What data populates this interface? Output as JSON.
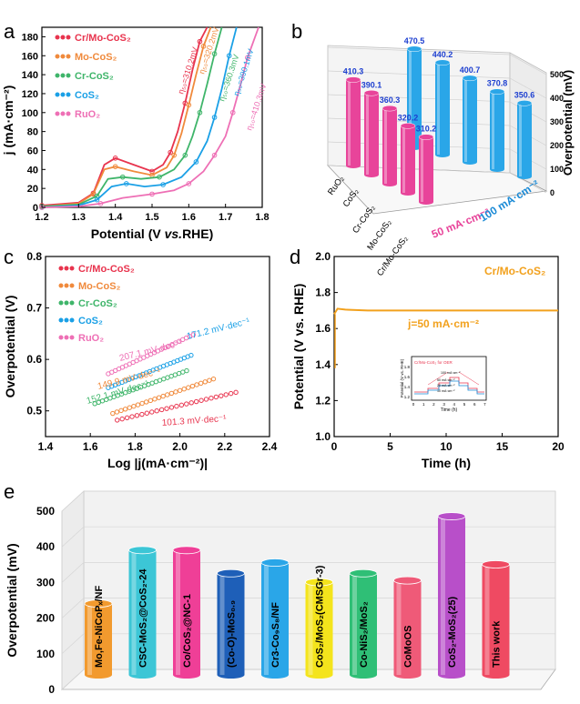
{
  "panel_labels": [
    "a",
    "b",
    "c",
    "d",
    "e"
  ],
  "colors": {
    "cr_mo": "#e8344e",
    "mo": "#f08a3c",
    "cr": "#3fb56a",
    "cos2": "#1aa0e6",
    "ruo2": "#ee6fb5",
    "accent_orange": "#f2a11d",
    "bar_blue": "#2aa6e8",
    "bar_pink": "#e8449a"
  },
  "chart_data": [
    {
      "id": "a",
      "type": "line",
      "xlabel_parts": [
        "Potential (V ",
        "vs.",
        "RHE)"
      ],
      "ylabel": "j (mA·cm⁻²)",
      "xlim": [
        1.2,
        1.8
      ],
      "ylim": [
        0,
        190
      ],
      "xticks": [
        "1.2",
        "1.3",
        "1.4",
        "1.5",
        "1.6",
        "1.7",
        "1.8"
      ],
      "yticks": [
        "0",
        "20",
        "40",
        "60",
        "80",
        "100",
        "120",
        "140",
        "160",
        "180"
      ],
      "legend": [
        "Cr/Mo-CoS₂",
        "Mo-CoS₂",
        "Cr-CoS₂",
        "CoS₂",
        "RuO₂"
      ],
      "annotations": [
        "η₅₀=310.2mV",
        "η₅₀=320.2mV",
        "η₅₀=360.3mV",
        "η₅₀=390.1mV",
        "η₅₀=410.3mV"
      ],
      "series": [
        {
          "name": "Cr/Mo-CoS₂",
          "x": [
            1.2,
            1.3,
            1.34,
            1.37,
            1.4,
            1.45,
            1.5,
            1.53,
            1.55,
            1.57,
            1.59,
            1.61,
            1.63,
            1.65
          ],
          "y": [
            2,
            5,
            15,
            45,
            52,
            45,
            38,
            45,
            58,
            80,
            110,
            145,
            175,
            190
          ]
        },
        {
          "name": "Mo-CoS₂",
          "x": [
            1.2,
            1.3,
            1.34,
            1.37,
            1.4,
            1.45,
            1.5,
            1.54,
            1.56,
            1.58,
            1.6,
            1.62,
            1.64,
            1.66
          ],
          "y": [
            1,
            4,
            14,
            40,
            43,
            38,
            34,
            42,
            55,
            78,
            108,
            140,
            170,
            190
          ]
        },
        {
          "name": "Cr-CoS₂",
          "x": [
            1.2,
            1.3,
            1.35,
            1.38,
            1.42,
            1.47,
            1.52,
            1.56,
            1.59,
            1.61,
            1.63,
            1.65,
            1.67,
            1.69
          ],
          "y": [
            1,
            3,
            12,
            30,
            32,
            30,
            32,
            40,
            55,
            75,
            100,
            130,
            162,
            190
          ]
        },
        {
          "name": "CoS₂",
          "x": [
            1.2,
            1.3,
            1.35,
            1.39,
            1.43,
            1.48,
            1.53,
            1.58,
            1.62,
            1.65,
            1.67,
            1.69,
            1.71,
            1.73
          ],
          "y": [
            0,
            2,
            8,
            22,
            25,
            22,
            24,
            32,
            48,
            70,
            95,
            125,
            160,
            190
          ]
        },
        {
          "name": "RuO₂",
          "x": [
            1.2,
            1.3,
            1.36,
            1.42,
            1.5,
            1.56,
            1.6,
            1.64,
            1.67,
            1.7,
            1.72,
            1.74,
            1.76,
            1.79
          ],
          "y": [
            0,
            1,
            4,
            10,
            14,
            18,
            25,
            38,
            55,
            75,
            100,
            128,
            158,
            190
          ]
        }
      ]
    },
    {
      "id": "b",
      "type": "bar",
      "zlabel": "Overpotential (mV)",
      "zlim": [
        0,
        500
      ],
      "zticks": [
        "0",
        "100",
        "200",
        "300",
        "400",
        "500"
      ],
      "categories": [
        "RuO₂",
        "CoS₂",
        "Cr-CoS₂",
        "Mo-CoS₂",
        "Cr/Mo-CoS₂"
      ],
      "series": [
        {
          "name": "50 mA·cm⁻²",
          "values": [
            410.3,
            390.1,
            360.3,
            320.2,
            310.2
          ]
        },
        {
          "name": "100 mA·cm⁻²",
          "values": [
            470.5,
            440.2,
            400.7,
            370.8,
            350.6
          ]
        }
      ],
      "value_labels_50": [
        "410.3",
        "390.1",
        "360.3",
        "320.2",
        "310.2"
      ],
      "value_labels_100": [
        "470.5",
        "440.2",
        "400.7",
        "370.8",
        "350.6"
      ]
    },
    {
      "id": "c",
      "type": "scatter",
      "xlabel": "Log |j(mA·cm⁻²)|",
      "ylabel": "Overpotential (V)",
      "xlim": [
        1.4,
        2.4
      ],
      "ylim": [
        0.45,
        0.8
      ],
      "xticks": [
        "1.4",
        "1.6",
        "1.8",
        "2.0",
        "2.2",
        "2.4"
      ],
      "yticks": [
        "0.5",
        "0.6",
        "0.7",
        "0.8"
      ],
      "legend": [
        "Cr/Mo-CoS₂",
        "Mo-CoS₂",
        "Cr-CoS₂",
        "CoS₂",
        "RuO₂"
      ],
      "slope_labels": [
        "207.1 mV·dec⁻¹",
        "171.2 mV·dec⁻¹",
        "152.1 mV·dec⁻¹",
        "149.9 mV·dec⁻¹",
        "101.3 mV·dec⁻¹"
      ],
      "series": [
        {
          "name": "Cr/Mo-CoS₂",
          "x": [
            1.72,
            2.25
          ],
          "y": [
            0.482,
            0.536
          ]
        },
        {
          "name": "Mo-CoS₂",
          "x": [
            1.7,
            2.15
          ],
          "y": [
            0.495,
            0.562
          ]
        },
        {
          "name": "Cr-CoS₂",
          "x": [
            1.62,
            2.03
          ],
          "y": [
            0.514,
            0.578
          ]
        },
        {
          "name": "CoS₂",
          "x": [
            1.68,
            2.05
          ],
          "y": [
            0.545,
            0.608
          ]
        },
        {
          "name": "RuO₂",
          "x": [
            1.68,
            2.06
          ],
          "y": [
            0.572,
            0.648
          ]
        }
      ]
    },
    {
      "id": "d",
      "type": "line",
      "xlabel": "Time (h)",
      "ylabel": "Potential (V vs. RHE)",
      "xlim": [
        0,
        20
      ],
      "ylim": [
        1.0,
        2.0
      ],
      "xticks": [
        "0",
        "5",
        "10",
        "15",
        "20"
      ],
      "yticks": [
        "1.0",
        "1.2",
        "1.4",
        "1.6",
        "1.8",
        "2.0"
      ],
      "legend_label": "Cr/Mo-CoS₂",
      "annotation": "j=50 mA·cm⁻²",
      "series": [
        {
          "name": "Cr/Mo-CoS₂",
          "x": [
            0,
            0.3,
            1,
            3,
            6,
            10,
            15,
            20
          ],
          "y": [
            1.68,
            1.71,
            1.705,
            1.7,
            1.7,
            1.7,
            1.7,
            1.7
          ]
        }
      ],
      "inset": {
        "title": "Cr/Mo-CoS₂ for OER",
        "xlabel": "Time (h)",
        "ylabel": "Potential (V vs. RHE)",
        "xticks": [
          "0",
          "1",
          "2",
          "3",
          "4",
          "5",
          "6",
          "7"
        ],
        "yticks": [
          "1.2",
          "1.4",
          "1.6",
          "1.8"
        ],
        "step_labels": [
          "100 mA·cm⁻²",
          "50 mA·cm⁻²",
          "20 mA·cm⁻²",
          "10 mA·cm⁻²"
        ]
      }
    },
    {
      "id": "e",
      "type": "bar",
      "ylabel": "Overpotential  (mV)",
      "ylim": [
        0,
        500
      ],
      "yticks": [
        "0",
        "100",
        "200",
        "300",
        "400",
        "500"
      ],
      "categories": [
        "Mo,Fe-NiCoPₓ/NF",
        "CSC-MoS₂@CoS₂-24",
        "Co/CoS₂@NC-1",
        "(Co-O)-MoS₀.₉",
        "Cr3-Co₉S₈/NF",
        "CoS₂/MoS₂(CMSGr-3)",
        "Co-NiS₂/MoS₂",
        "CoMoOS",
        "CoS₂-MoS₂(25)",
        "This work"
      ],
      "values": [
        200,
        350,
        350,
        285,
        315,
        260,
        285,
        265,
        445,
        310
      ],
      "bar_colors": [
        "#f29a2e",
        "#3cc6d6",
        "#ef3f97",
        "#1e5fb8",
        "#2aa6e8",
        "#f4e41c",
        "#2fbf76",
        "#ef5a78",
        "#b84fc9",
        "#ef4a62"
      ]
    }
  ]
}
